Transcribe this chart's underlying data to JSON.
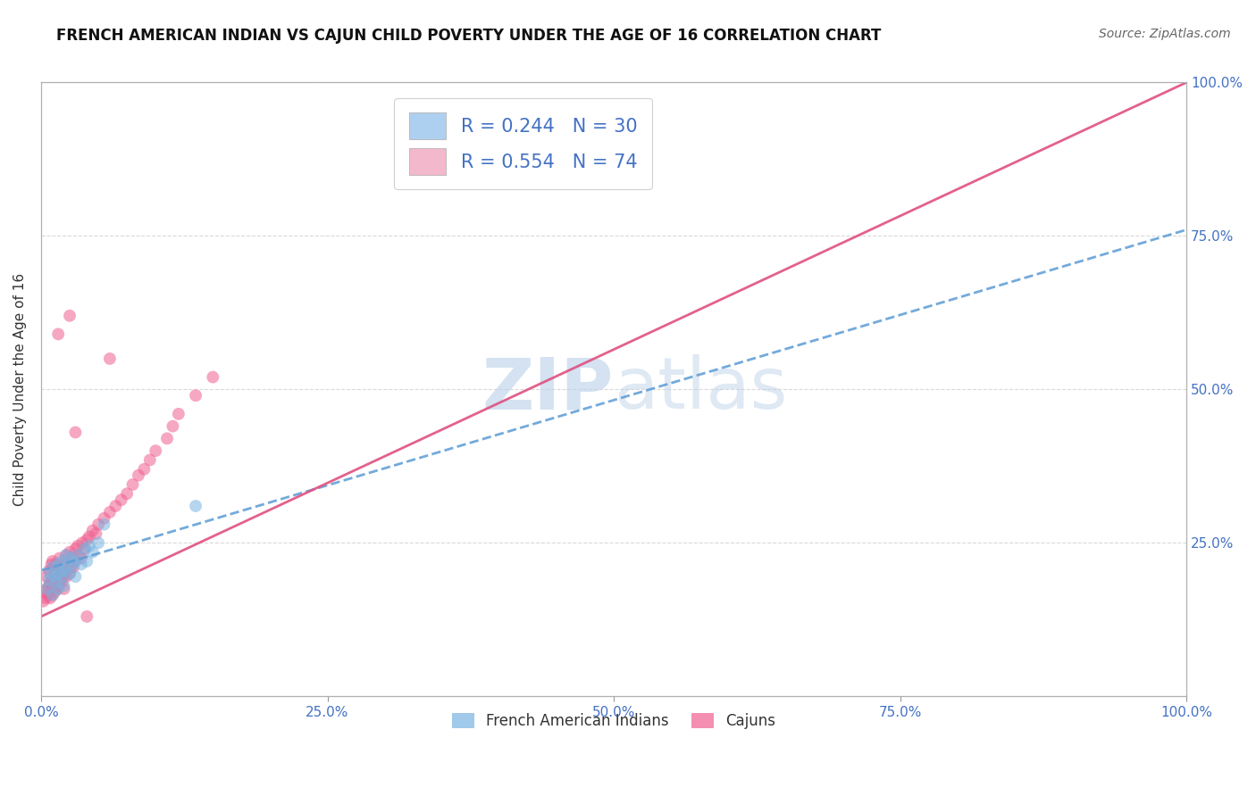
{
  "title": "FRENCH AMERICAN INDIAN VS CAJUN CHILD POVERTY UNDER THE AGE OF 16 CORRELATION CHART",
  "source": "Source: ZipAtlas.com",
  "ylabel": "Child Poverty Under the Age of 16",
  "xlim": [
    0,
    1.0
  ],
  "ylim": [
    0,
    1.0
  ],
  "xticks": [
    0.0,
    0.25,
    0.5,
    0.75,
    1.0
  ],
  "yticks": [
    0.0,
    0.25,
    0.5,
    0.75,
    1.0
  ],
  "xticklabels": [
    "0.0%",
    "25.0%",
    "50.0%",
    "75.0%",
    "100.0%"
  ],
  "right_yticklabels": [
    "25.0%",
    "50.0%",
    "75.0%",
    "100.0%"
  ],
  "watermark_part1": "ZIP",
  "watermark_part2": "atlas",
  "legend_label_1": "R = 0.244   N = 30",
  "legend_label_2": "R = 0.554   N = 74",
  "legend_color_1": "#aed0f0",
  "legend_color_2": "#f4b8cc",
  "blue_scatter_x": [
    0.005,
    0.007,
    0.008,
    0.01,
    0.01,
    0.012,
    0.013,
    0.015,
    0.015,
    0.016,
    0.018,
    0.018,
    0.02,
    0.02,
    0.022,
    0.022,
    0.025,
    0.025,
    0.028,
    0.03,
    0.03,
    0.032,
    0.035,
    0.038,
    0.04,
    0.042,
    0.045,
    0.05,
    0.055,
    0.135
  ],
  "blue_scatter_y": [
    0.175,
    0.19,
    0.2,
    0.165,
    0.21,
    0.195,
    0.185,
    0.175,
    0.215,
    0.2,
    0.195,
    0.22,
    0.18,
    0.205,
    0.21,
    0.23,
    0.2,
    0.225,
    0.215,
    0.195,
    0.22,
    0.23,
    0.215,
    0.24,
    0.22,
    0.245,
    0.235,
    0.25,
    0.28,
    0.31
  ],
  "pink_scatter_x": [
    0.002,
    0.003,
    0.004,
    0.005,
    0.005,
    0.006,
    0.007,
    0.007,
    0.008,
    0.008,
    0.009,
    0.009,
    0.01,
    0.01,
    0.01,
    0.011,
    0.011,
    0.012,
    0.012,
    0.013,
    0.013,
    0.014,
    0.014,
    0.015,
    0.015,
    0.016,
    0.016,
    0.017,
    0.018,
    0.018,
    0.019,
    0.02,
    0.02,
    0.021,
    0.022,
    0.022,
    0.023,
    0.025,
    0.025,
    0.026,
    0.027,
    0.028,
    0.03,
    0.03,
    0.032,
    0.033,
    0.035,
    0.036,
    0.038,
    0.04,
    0.042,
    0.045,
    0.048,
    0.05,
    0.055,
    0.06,
    0.065,
    0.07,
    0.075,
    0.08,
    0.085,
    0.09,
    0.095,
    0.1,
    0.11,
    0.115,
    0.12,
    0.135,
    0.15,
    0.03,
    0.015,
    0.06,
    0.025,
    0.04
  ],
  "pink_scatter_y": [
    0.155,
    0.17,
    0.16,
    0.175,
    0.195,
    0.165,
    0.18,
    0.205,
    0.16,
    0.185,
    0.175,
    0.215,
    0.165,
    0.19,
    0.22,
    0.18,
    0.21,
    0.17,
    0.2,
    0.185,
    0.215,
    0.175,
    0.195,
    0.18,
    0.21,
    0.19,
    0.225,
    0.2,
    0.185,
    0.215,
    0.195,
    0.175,
    0.205,
    0.22,
    0.195,
    0.23,
    0.215,
    0.2,
    0.235,
    0.21,
    0.225,
    0.21,
    0.24,
    0.22,
    0.245,
    0.23,
    0.225,
    0.25,
    0.24,
    0.255,
    0.26,
    0.27,
    0.265,
    0.28,
    0.29,
    0.3,
    0.31,
    0.32,
    0.33,
    0.345,
    0.36,
    0.37,
    0.385,
    0.4,
    0.42,
    0.44,
    0.46,
    0.49,
    0.52,
    0.43,
    0.59,
    0.55,
    0.62,
    0.13
  ],
  "blue_line_color": "#5b9bd5",
  "pink_line_color": "#e05080",
  "blue_line_dash": true,
  "pink_line_dash": false,
  "grid_color": "#d0d0d0",
  "background_color": "#ffffff",
  "title_fontsize": 12,
  "source_fontsize": 10,
  "tick_color": "#4472c4",
  "scatter_alpha": 0.55,
  "scatter_size": 100,
  "blue_scatter_color": "#7ab3e0",
  "pink_scatter_color": "#f06090"
}
